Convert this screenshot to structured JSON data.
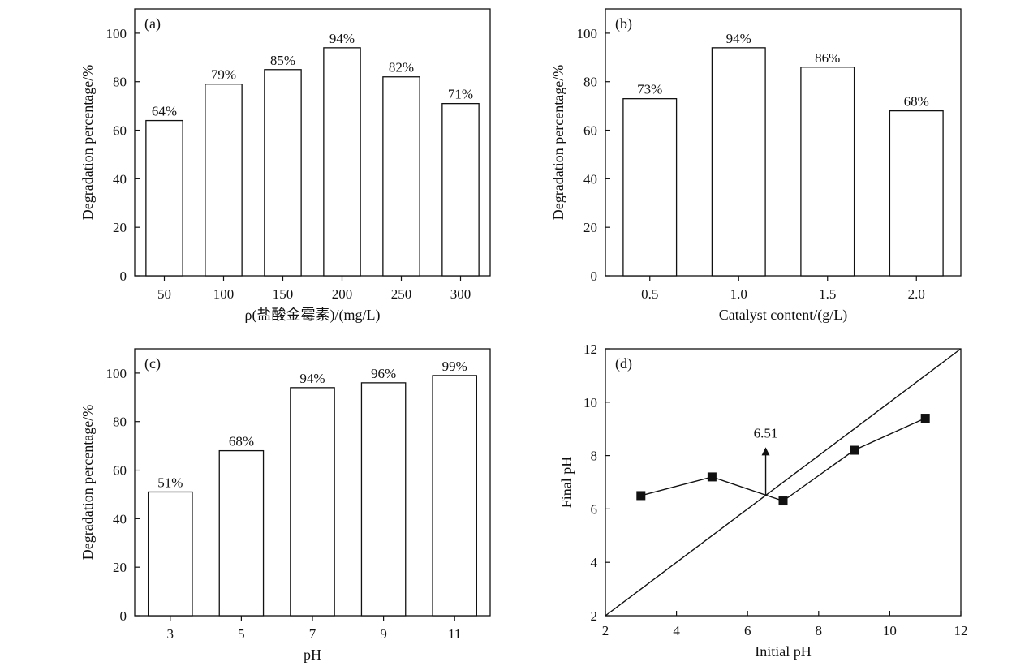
{
  "chart_data": [
    {
      "type": "bar",
      "panel_label": "(a)",
      "xlabel": "ρ(盐酸金霉素)/(mg/L)",
      "ylabel": "Degradation percentage/%",
      "categories": [
        "50",
        "100",
        "150",
        "200",
        "250",
        "300"
      ],
      "values": [
        64,
        79,
        85,
        94,
        82,
        71
      ],
      "data_labels": [
        "64%",
        "79%",
        "85%",
        "94%",
        "82%",
        "71%"
      ],
      "ylim": [
        0,
        110
      ],
      "yticks": [
        "0",
        "20",
        "40",
        "60",
        "80",
        "100"
      ]
    },
    {
      "type": "bar",
      "panel_label": "(b)",
      "xlabel": "Catalyst content/(g/L)",
      "ylabel": "Degradation percentage/%",
      "categories": [
        "0.5",
        "1.0",
        "1.5",
        "2.0"
      ],
      "values": [
        73,
        94,
        86,
        68
      ],
      "data_labels": [
        "73%",
        "94%",
        "86%",
        "68%"
      ],
      "ylim": [
        0,
        110
      ],
      "yticks": [
        "0",
        "20",
        "40",
        "60",
        "80",
        "100"
      ]
    },
    {
      "type": "bar",
      "panel_label": "(c)",
      "xlabel": "pH",
      "ylabel": "Degradation percentage/%",
      "categories": [
        "3",
        "5",
        "7",
        "9",
        "11"
      ],
      "values": [
        51,
        68,
        94,
        96,
        99
      ],
      "data_labels": [
        "51%",
        "68%",
        "94%",
        "96%",
        "99%"
      ],
      "ylim": [
        0,
        110
      ],
      "yticks": [
        "0",
        "20",
        "40",
        "60",
        "80",
        "100"
      ]
    },
    {
      "type": "line",
      "panel_label": "(d)",
      "xlabel": "Initial pH",
      "ylabel": "Final pH",
      "x": [
        3,
        5,
        7,
        9,
        11
      ],
      "y": [
        6.5,
        7.2,
        6.3,
        8.2,
        9.4
      ],
      "reference_line": {
        "x": [
          2,
          12
        ],
        "y": [
          2,
          12
        ]
      },
      "annotation": {
        "text": "6.51",
        "x": 6.51,
        "y": 6.51
      },
      "xlim": [
        2,
        12
      ],
      "ylim": [
        2,
        12
      ],
      "xticks": [
        "2",
        "4",
        "6",
        "8",
        "10",
        "12"
      ],
      "yticks": [
        "2",
        "4",
        "6",
        "8",
        "10",
        "12"
      ]
    }
  ]
}
